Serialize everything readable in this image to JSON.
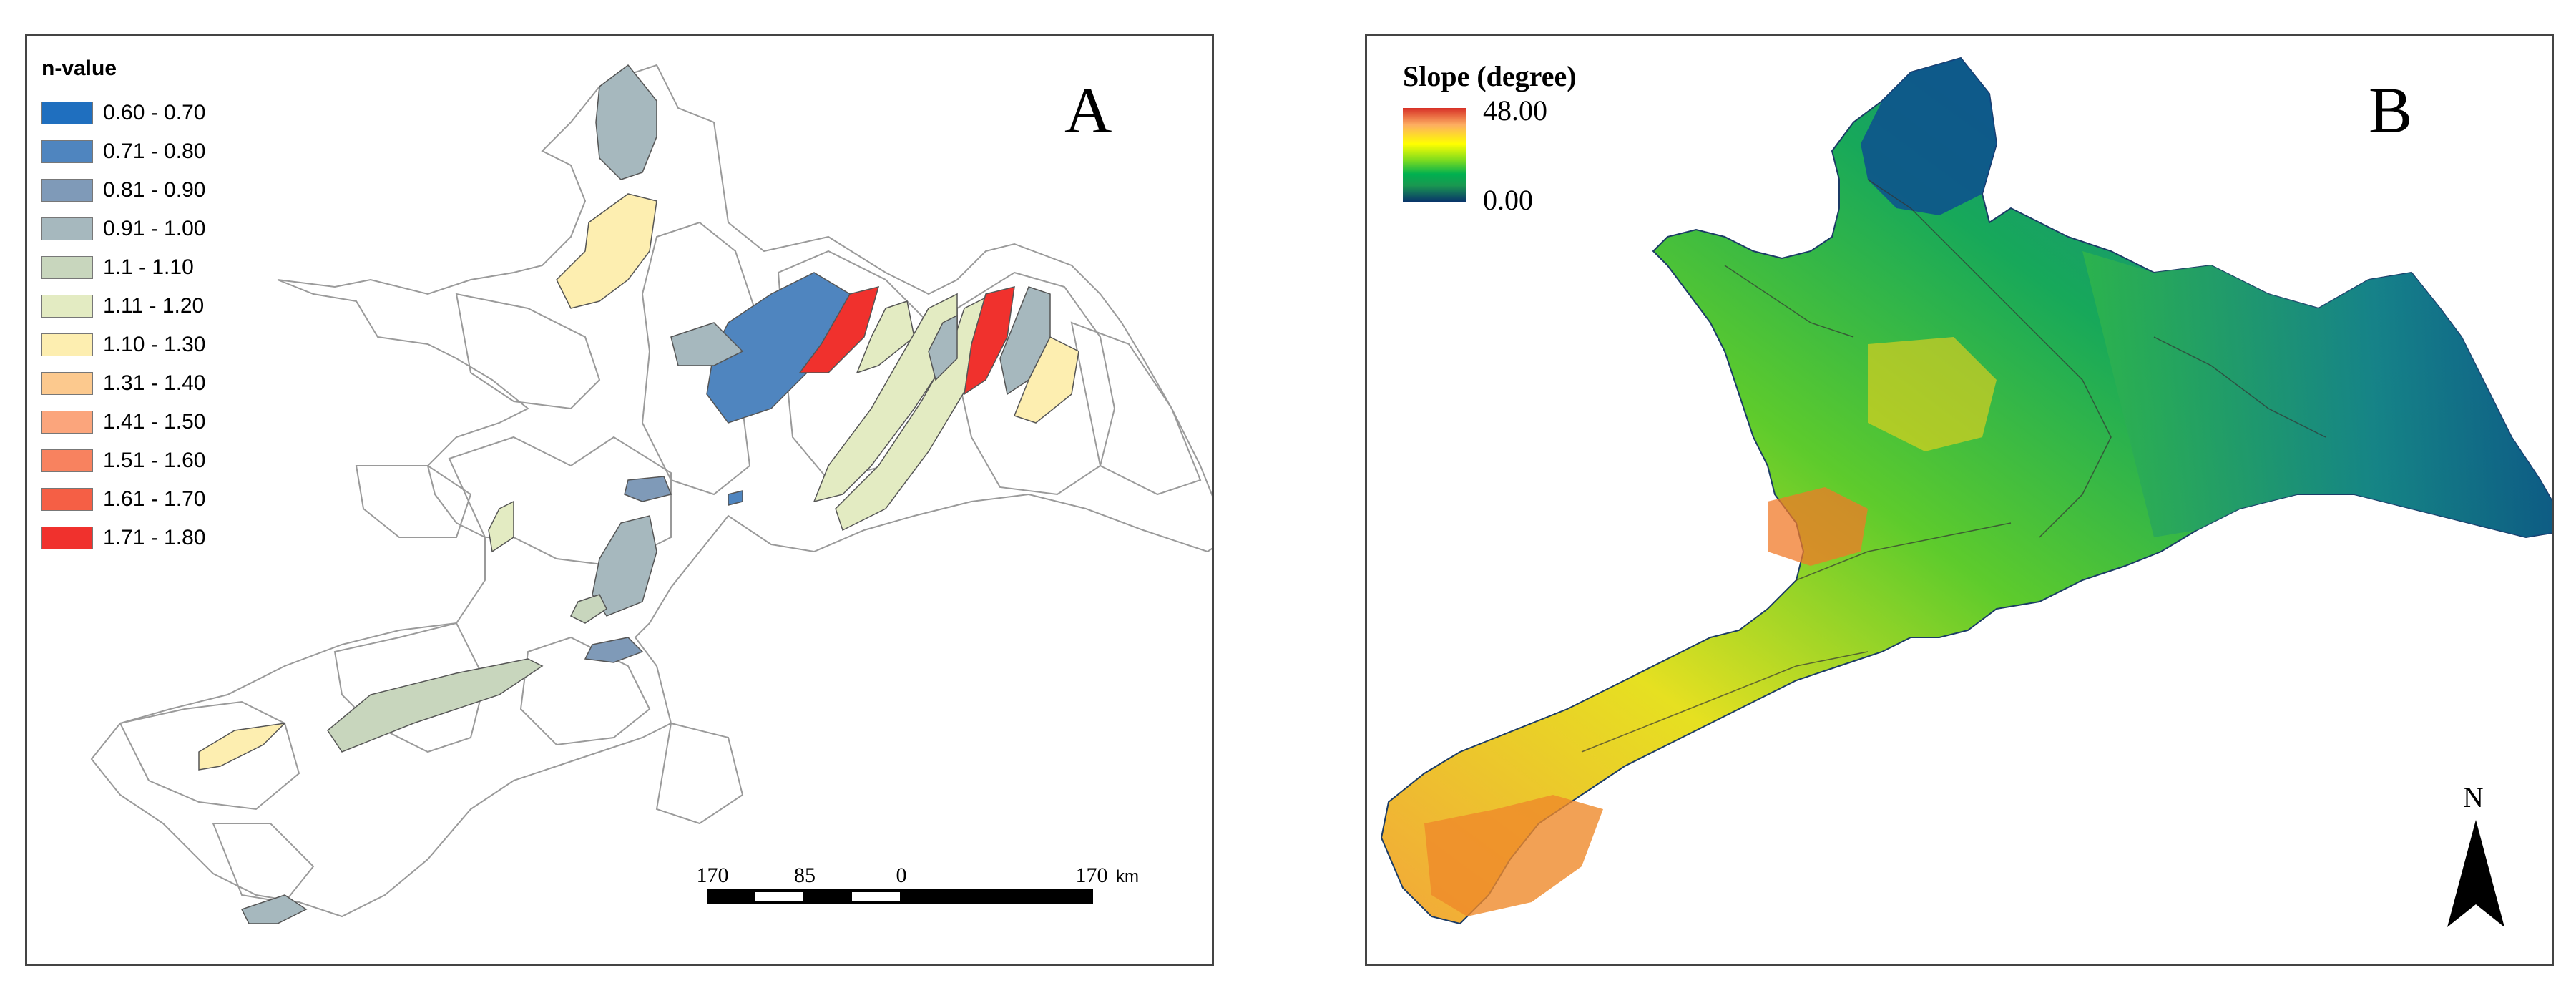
{
  "panel_a": {
    "letter": "A",
    "legend": {
      "title": "n-value",
      "items": [
        {
          "label": "0.60 - 0.70",
          "color": "#1f6fbf"
        },
        {
          "label": "0.71 - 0.80",
          "color": "#4f85bf"
        },
        {
          "label": "0.81 - 0.90",
          "color": "#7f9ab8"
        },
        {
          "label": "0.91 - 1.00",
          "color": "#a6b8be"
        },
        {
          "label": "1.1 - 1.10",
          "color": "#c8d6bd"
        },
        {
          "label": "1.11 - 1.20",
          "color": "#e3ebc2"
        },
        {
          "label": "1.10 - 1.30",
          "color": "#fdeeb0"
        },
        {
          "label": "1.31 - 1.40",
          "color": "#fcc98e"
        },
        {
          "label": "1.41 - 1.50",
          "color": "#fba57c"
        },
        {
          "label": "1.51 - 1.60",
          "color": "#f8825f"
        },
        {
          "label": "1.61 - 1.70",
          "color": "#f55f45"
        },
        {
          "label": "1.71 - 1.80",
          "color": "#f0312d"
        }
      ]
    },
    "scale_bar": {
      "labels": [
        "170",
        "85",
        "0",
        "170"
      ],
      "unit": "km"
    }
  },
  "panel_b": {
    "letter": "B",
    "legend": {
      "title": "Slope (degree)",
      "max_label": "48.00",
      "min_label": "0.00"
    },
    "north_label": "N"
  }
}
